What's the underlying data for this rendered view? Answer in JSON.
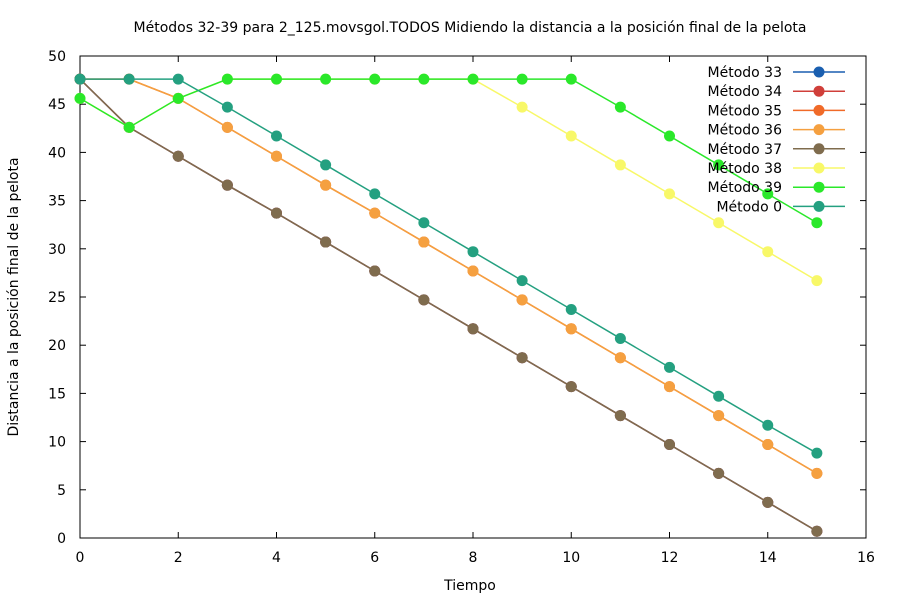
{
  "chart_data": {
    "type": "line",
    "title": "Métodos 32-39 para 2_125.movsgol.TODOS Midiendo la distancia a la posición final de la pelota",
    "xlabel": "Tiempo",
    "ylabel": "Distancia a la posición final de la pelota",
    "xlim": [
      0,
      16
    ],
    "ylim": [
      0,
      50
    ],
    "xticks": [
      "0",
      "2",
      "4",
      "6",
      "8",
      "10",
      "12",
      "14",
      "16"
    ],
    "yticks": [
      "0",
      "5",
      "10",
      "15",
      "20",
      "25",
      "30",
      "35",
      "40",
      "45",
      "50"
    ],
    "grid": false,
    "legend_position": "top-right",
    "x": [
      0,
      1,
      2,
      3,
      4,
      5,
      6,
      7,
      8,
      9,
      10,
      11,
      12,
      13,
      14,
      15
    ],
    "series": [
      {
        "name": "Método 33",
        "color": "#1a5fb0",
        "values": [
          47.6,
          42.6,
          39.6,
          36.6,
          33.7,
          30.7,
          27.7,
          24.7,
          21.7,
          18.7,
          15.7,
          12.7,
          9.7,
          6.7,
          3.7,
          0.7
        ]
      },
      {
        "name": "Método 34",
        "color": "#d03f3a",
        "values": [
          47.6,
          42.6,
          39.6,
          36.6,
          33.7,
          30.7,
          27.7,
          24.7,
          21.7,
          18.7,
          15.7,
          12.7,
          9.7,
          6.7,
          3.7,
          0.7
        ]
      },
      {
        "name": "Método 35",
        "color": "#f06a28",
        "values": [
          47.6,
          47.6,
          45.6,
          42.6,
          39.6,
          36.6,
          33.7,
          30.7,
          27.7,
          24.7,
          21.7,
          18.7,
          15.7,
          12.7,
          9.7,
          6.7
        ]
      },
      {
        "name": "Método 36",
        "color": "#f5a040",
        "values": [
          47.6,
          47.6,
          45.6,
          42.6,
          39.6,
          36.6,
          33.7,
          30.7,
          27.7,
          24.7,
          21.7,
          18.7,
          15.7,
          12.7,
          9.7,
          6.7
        ]
      },
      {
        "name": "Método 37",
        "color": "#7f6c4e",
        "values": [
          47.6,
          42.6,
          39.6,
          36.6,
          33.7,
          30.7,
          27.7,
          24.7,
          21.7,
          18.7,
          15.7,
          12.7,
          9.7,
          6.7,
          3.7,
          0.7
        ]
      },
      {
        "name": "Método 38",
        "color": "#f8f868",
        "values": [
          45.6,
          42.6,
          45.6,
          47.6,
          47.6,
          47.6,
          47.6,
          47.6,
          47.6,
          44.7,
          41.7,
          38.7,
          35.7,
          32.7,
          29.7,
          26.7
        ]
      },
      {
        "name": "Método 39",
        "color": "#2ae82a",
        "values": [
          45.6,
          42.6,
          45.6,
          47.6,
          47.6,
          47.6,
          47.6,
          47.6,
          47.6,
          47.6,
          47.6,
          44.7,
          41.7,
          38.7,
          35.7,
          32.7
        ]
      },
      {
        "name": "Método 0",
        "color": "#24a080",
        "values": [
          47.6,
          47.6,
          47.6,
          44.7,
          41.7,
          38.7,
          35.7,
          32.7,
          29.7,
          26.7,
          23.7,
          20.7,
          17.7,
          14.7,
          11.7,
          8.8
        ]
      }
    ]
  }
}
